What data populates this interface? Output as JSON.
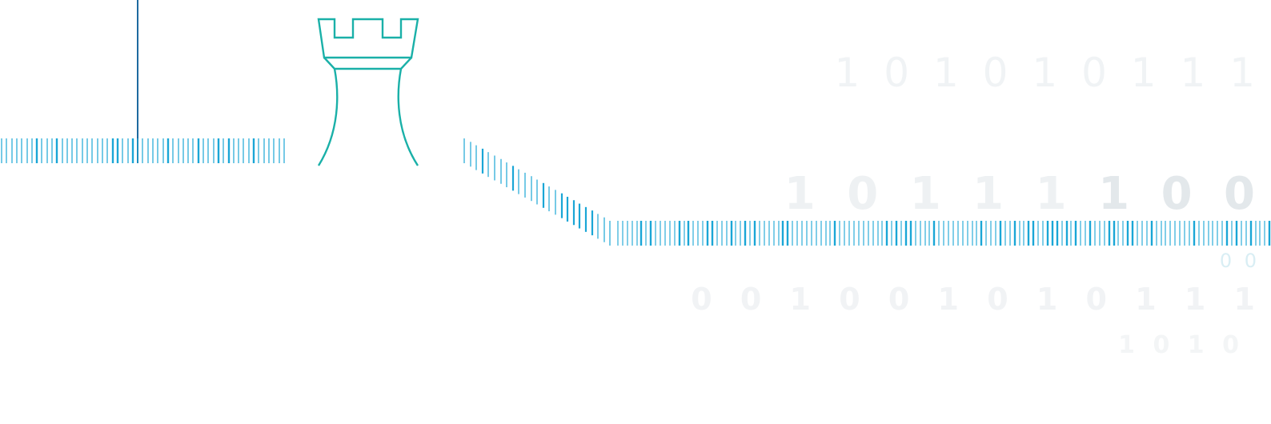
{
  "colors": {
    "barcode": "#1aa6d6",
    "rook": "#1ab0a8",
    "marker": "#1e6aa0",
    "digits_light": "#f0f3f5",
    "digits_mid": "#e3e8eb",
    "digits_accent": "#d9eef4"
  },
  "rook_icon": "rook-chess-piece",
  "binary": {
    "row1": "1 0 1 0 1 0 1 1 1",
    "row2_light": "1 0 1 1 1 ",
    "row2_strong": "1 0 0",
    "row3": "0 0",
    "row4": "0 0 1 0 0 1 0 1 0 1 1 1",
    "row5": "1 0 1 0"
  }
}
